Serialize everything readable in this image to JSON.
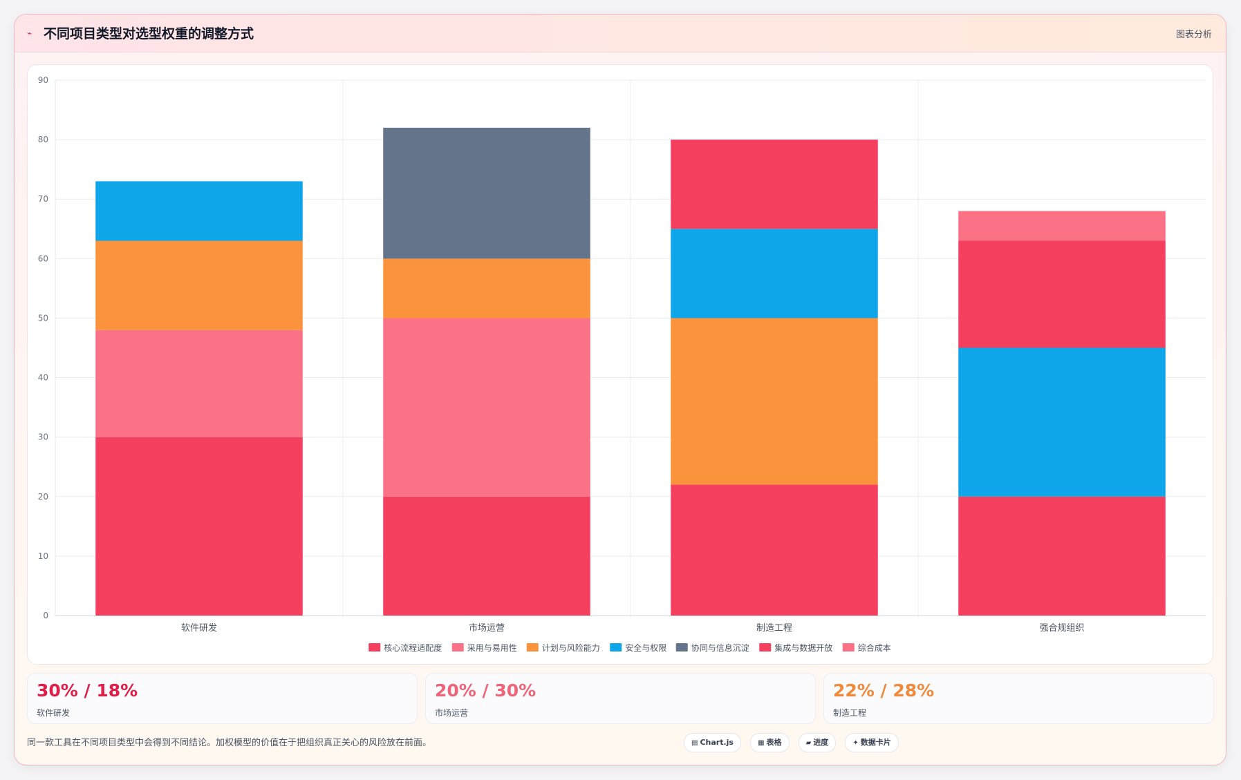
{
  "header": {
    "title_icon": "chart-line-icon",
    "title": "不同项目类型对选型权重的调整方式",
    "tag": "图表分析"
  },
  "chart_data": {
    "type": "bar",
    "stacked": true,
    "categories": [
      "软件研发",
      "市场运营",
      "制造工程",
      "强合规组织"
    ],
    "series": [
      {
        "name": "核心流程适配度",
        "color": "#f43f5e",
        "values": [
          30,
          20,
          22,
          20
        ]
      },
      {
        "name": "采用与易用性",
        "color": "#fb7185",
        "values": [
          18,
          30,
          0,
          0
        ]
      },
      {
        "name": "计划与风险能力",
        "color": "#fb923c",
        "values": [
          15,
          10,
          28,
          0
        ]
      },
      {
        "name": "安全与权限",
        "color": "#0ea5e9",
        "values": [
          10,
          0,
          15,
          25
        ]
      },
      {
        "name": "协同与信息沉淀",
        "color": "#64748b",
        "values": [
          0,
          22,
          0,
          0
        ]
      },
      {
        "name": "集成与数据开放",
        "color": "#f43f5e",
        "values": [
          0,
          0,
          15,
          18
        ]
      },
      {
        "name": "综合成本",
        "color": "#fb7185",
        "values": [
          0,
          0,
          0,
          5
        ]
      }
    ],
    "ylim": [
      0,
      90
    ],
    "yticks": [
      0,
      10,
      20,
      30,
      40,
      50,
      60,
      70,
      80,
      90
    ],
    "grid": true,
    "legend": "bottom"
  },
  "stats": [
    {
      "value": "30% / 18%",
      "label": "软件研发",
      "color": "#e11d48"
    },
    {
      "value": "20% / 30%",
      "label": "市场运营",
      "color": "#f06479"
    },
    {
      "value": "22% / 28%",
      "label": "制造工程",
      "color": "#f08a3a"
    }
  ],
  "footer": {
    "note": "同一款工具在不同项目类型中会得到不同结论。加权模型的价值在于把组织真正关心的风险放在前面。",
    "chips": [
      {
        "icon": "chart-icon",
        "glyph": "▤",
        "label": "Chart.js"
      },
      {
        "icon": "table-icon",
        "glyph": "▦",
        "label": "表格"
      },
      {
        "icon": "progress-icon",
        "glyph": "▰",
        "label": "进度"
      },
      {
        "icon": "sparkle-icon",
        "glyph": "✦",
        "label": "数据卡片"
      }
    ]
  }
}
